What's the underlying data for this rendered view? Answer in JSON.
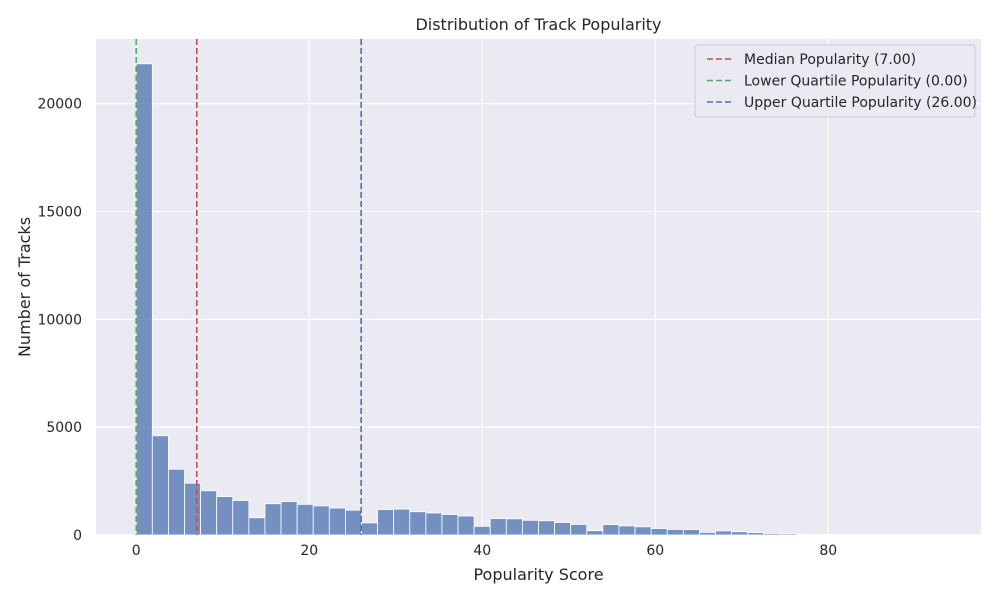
{
  "chart_data": {
    "type": "bar",
    "title": "Distribution of Track Popularity",
    "xlabel": "Popularity Score",
    "ylabel": "Number of Tracks",
    "xlim": [
      -4.65,
      97.65
    ],
    "ylim": [
      0,
      23000
    ],
    "x_ticks": [
      0,
      20,
      40,
      60,
      80
    ],
    "y_ticks": [
      0,
      5000,
      10000,
      15000,
      20000
    ],
    "grid": true,
    "legend_position": "top-right",
    "bin_edges": [
      0,
      1.86,
      3.72,
      5.58,
      7.44,
      9.3,
      11.16,
      13.02,
      14.88,
      16.74,
      18.6,
      20.46,
      22.32,
      24.18,
      26.04,
      27.9,
      29.76,
      31.62,
      33.48,
      35.34,
      37.2,
      39.06,
      40.92,
      42.78,
      44.64,
      46.5,
      48.36,
      50.22,
      52.08,
      53.94,
      55.8,
      57.66,
      59.52,
      61.38,
      63.24,
      65.1,
      66.96,
      68.82,
      70.68,
      72.54,
      74.4,
      76.26,
      78.12,
      79.98,
      81.84,
      83.7,
      85.56,
      87.42,
      89.28,
      91.14,
      93
    ],
    "values": [
      21850,
      4600,
      3050,
      2400,
      2050,
      1780,
      1600,
      800,
      1450,
      1550,
      1420,
      1350,
      1250,
      1150,
      560,
      1180,
      1200,
      1080,
      1020,
      950,
      880,
      400,
      760,
      750,
      680,
      660,
      580,
      490,
      200,
      480,
      420,
      380,
      300,
      260,
      250,
      120,
      190,
      150,
      110,
      70,
      60,
      40,
      25,
      15,
      10,
      6,
      4,
      3,
      2,
      1
    ],
    "bar_color": "#4c72b0",
    "reference_lines": [
      {
        "name": "Median Popularity (7.00)",
        "x": 7,
        "color": "#c44e52"
      },
      {
        "name": "Lower Quartile Popularity (0.00)",
        "x": 0,
        "color": "#55a868"
      },
      {
        "name": "Upper Quartile Popularity (26.00)",
        "x": 26,
        "color": "#4c72b0"
      }
    ]
  }
}
